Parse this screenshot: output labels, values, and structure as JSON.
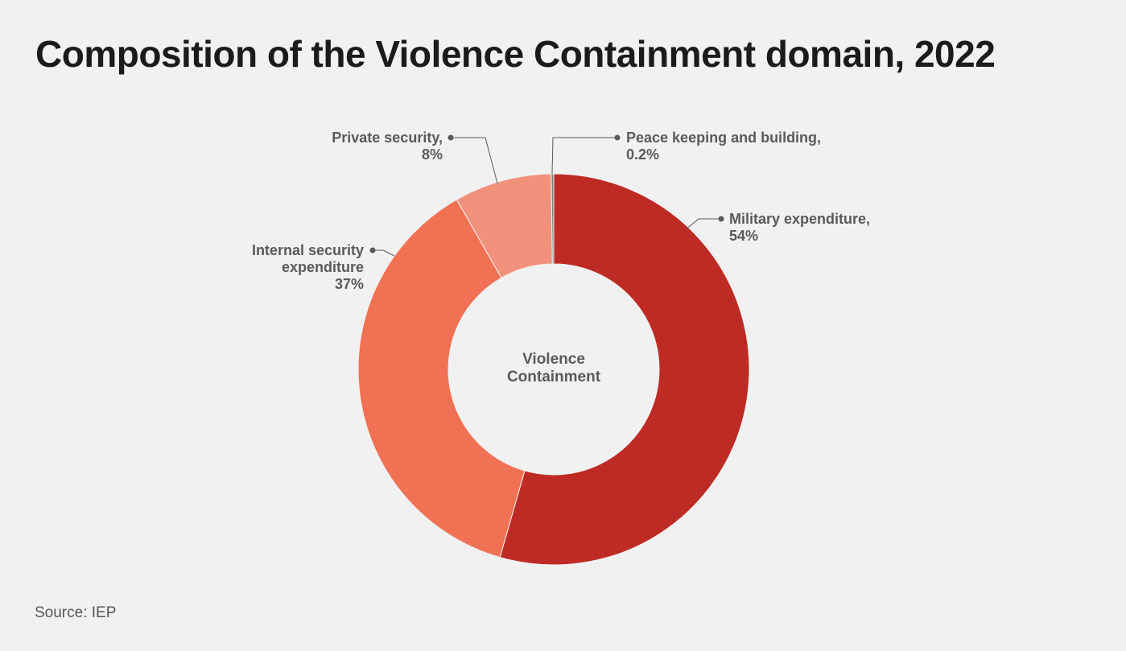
{
  "title": "Composition of the Violence Containment domain, 2022",
  "source": "Source: IEP",
  "chart_data": {
    "type": "pie",
    "variant": "donut",
    "title": "Composition of the Violence Containment domain, 2022",
    "center_label": [
      "Violence",
      "Containment"
    ],
    "unit": "%",
    "slices": [
      {
        "name": "Military expenditure",
        "value": 54,
        "label_lines": [
          "Military expenditure,",
          "54%"
        ],
        "color": "#be2b25"
      },
      {
        "name": "Internal security expenditure",
        "value": 37,
        "label_lines": [
          "Internal security",
          "expenditure",
          "37%"
        ],
        "color": "#f07154"
      },
      {
        "name": "Private security",
        "value": 8,
        "label_lines": [
          "Private security,",
          "8%"
        ],
        "color": "#f2917b"
      },
      {
        "name": "Peace keeping and building",
        "value": 0.2,
        "label_lines": [
          "Peace keeping and building,",
          "0.2%"
        ],
        "color": "#7f7f7f"
      }
    ]
  }
}
